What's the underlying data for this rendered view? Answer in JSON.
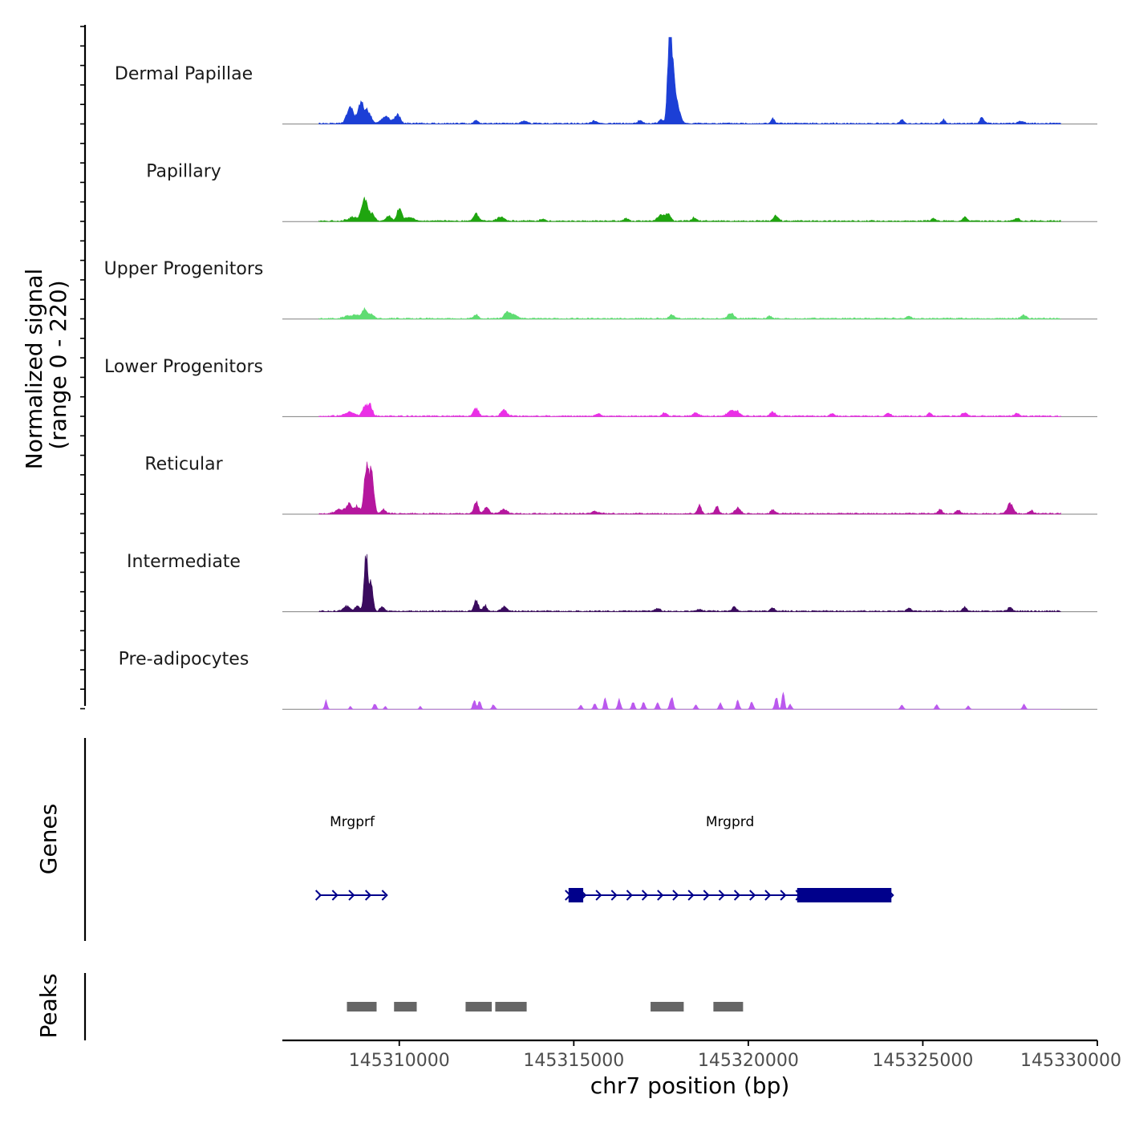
{
  "chart_data": {
    "type": "area",
    "title": "",
    "xlabel": "chr7 position (bp)",
    "ylabel": "Normalized signal",
    "ylabel_range": "(range 0 - 220)",
    "ylim": [
      0,
      220
    ],
    "xlim": [
      145306650,
      145330000
    ],
    "x_ticks": [
      145310000,
      145315000,
      145320000,
      145325000,
      145330000
    ],
    "x_tick_labels": [
      "145310000",
      "145315000",
      "145320000",
      "145325000",
      "145330000"
    ],
    "colors": {
      "Dermal Papillae": "#1c3fd6",
      "Papillary": "#1fa50f",
      "Upper Progenitors": "#5fdc72",
      "Lower Progenitors": "#ea2fe6",
      "Reticular": "#b5179e",
      "Intermediate": "#3a0b5e",
      "Pre-adipocytes": "#bb59ee"
    },
    "series": [
      {
        "name": "Dermal Papillae",
        "peaks": [
          [
            145308600,
            40,
            100
          ],
          [
            145308900,
            55,
            70
          ],
          [
            145309100,
            32,
            90
          ],
          [
            145309600,
            18,
            120
          ],
          [
            145309950,
            22,
            80
          ],
          [
            145312200,
            8,
            60
          ],
          [
            145313600,
            6,
            80
          ],
          [
            145315600,
            6,
            80
          ],
          [
            145316900,
            8,
            60
          ],
          [
            145317500,
            10,
            60
          ],
          [
            145317750,
            210,
            55
          ],
          [
            145317850,
            120,
            90
          ],
          [
            145318050,
            15,
            60
          ],
          [
            145320700,
            12,
            50
          ],
          [
            145324400,
            9,
            50
          ],
          [
            145325600,
            9,
            50
          ],
          [
            145326700,
            14,
            60
          ],
          [
            145327800,
            6,
            80
          ]
        ]
      },
      {
        "name": "Papillary",
        "peaks": [
          [
            145308700,
            10,
            150
          ],
          [
            145309000,
            60,
            70
          ],
          [
            145309200,
            20,
            80
          ],
          [
            145309700,
            12,
            80
          ],
          [
            145310000,
            30,
            70
          ],
          [
            145310300,
            10,
            100
          ],
          [
            145312200,
            18,
            70
          ],
          [
            145312900,
            10,
            100
          ],
          [
            145314100,
            6,
            60
          ],
          [
            145316500,
            6,
            60
          ],
          [
            145317500,
            14,
            100
          ],
          [
            145317700,
            18,
            70
          ],
          [
            145318450,
            8,
            60
          ],
          [
            145320800,
            14,
            70
          ],
          [
            145325300,
            6,
            60
          ],
          [
            145326200,
            10,
            70
          ],
          [
            145327700,
            8,
            60
          ]
        ]
      },
      {
        "name": "Upper Progenitors",
        "peaks": [
          [
            145308500,
            6,
            100
          ],
          [
            145308750,
            10,
            100
          ],
          [
            145309000,
            24,
            70
          ],
          [
            145309200,
            12,
            70
          ],
          [
            145312200,
            9,
            60
          ],
          [
            145313100,
            16,
            90
          ],
          [
            145313300,
            8,
            90
          ],
          [
            145317800,
            9,
            70
          ],
          [
            145319500,
            14,
            80
          ],
          [
            145320600,
            6,
            60
          ],
          [
            145324600,
            6,
            60
          ],
          [
            145327900,
            9,
            70
          ]
        ]
      },
      {
        "name": "Lower Progenitors",
        "peaks": [
          [
            145308600,
            10,
            140
          ],
          [
            145309000,
            20,
            60
          ],
          [
            145309150,
            30,
            70
          ],
          [
            145312200,
            20,
            70
          ],
          [
            145313000,
            16,
            80
          ],
          [
            145315700,
            6,
            60
          ],
          [
            145317600,
            8,
            60
          ],
          [
            145318500,
            8,
            80
          ],
          [
            145319500,
            15,
            90
          ],
          [
            145319700,
            10,
            70
          ],
          [
            145320700,
            10,
            70
          ],
          [
            145322400,
            6,
            60
          ],
          [
            145324000,
            8,
            60
          ],
          [
            145325200,
            8,
            60
          ],
          [
            145326200,
            9,
            70
          ],
          [
            145327700,
            8,
            60
          ]
        ]
      },
      {
        "name": "Reticular",
        "peaks": [
          [
            145308250,
            10,
            100
          ],
          [
            145308550,
            25,
            90
          ],
          [
            145308800,
            18,
            70
          ],
          [
            145309050,
            105,
            60
          ],
          [
            145309200,
            100,
            70
          ],
          [
            145309550,
            10,
            70
          ],
          [
            145312200,
            30,
            60
          ],
          [
            145312500,
            18,
            70
          ],
          [
            145313000,
            10,
            90
          ],
          [
            145315600,
            6,
            100
          ],
          [
            145318600,
            22,
            50
          ],
          [
            145319100,
            18,
            50
          ],
          [
            145319700,
            14,
            80
          ],
          [
            145320700,
            9,
            60
          ],
          [
            145325500,
            10,
            60
          ],
          [
            145326000,
            9,
            60
          ],
          [
            145327500,
            25,
            80
          ],
          [
            145328100,
            8,
            60
          ]
        ]
      },
      {
        "name": "Intermediate",
        "peaks": [
          [
            145308500,
            12,
            100
          ],
          [
            145308800,
            14,
            60
          ],
          [
            145309050,
            140,
            55
          ],
          [
            145309200,
            70,
            50
          ],
          [
            145309500,
            10,
            60
          ],
          [
            145312200,
            28,
            60
          ],
          [
            145312450,
            14,
            60
          ],
          [
            145313000,
            12,
            70
          ],
          [
            145317400,
            8,
            60
          ],
          [
            145318600,
            6,
            60
          ],
          [
            145319600,
            12,
            60
          ],
          [
            145320700,
            8,
            60
          ],
          [
            145324600,
            8,
            60
          ],
          [
            145326200,
            10,
            60
          ],
          [
            145327500,
            10,
            60
          ]
        ]
      },
      {
        "name": "Pre-adipocytes",
        "peaks": [
          [
            145307900,
            22,
            35
          ],
          [
            145308600,
            8,
            30
          ],
          [
            145309300,
            14,
            40
          ],
          [
            145309600,
            8,
            30
          ],
          [
            145310600,
            8,
            30
          ],
          [
            145312150,
            24,
            40
          ],
          [
            145312300,
            20,
            40
          ],
          [
            145312700,
            12,
            40
          ],
          [
            145315200,
            10,
            40
          ],
          [
            145315600,
            14,
            40
          ],
          [
            145315900,
            30,
            35
          ],
          [
            145316300,
            24,
            40
          ],
          [
            145316700,
            18,
            40
          ],
          [
            145317000,
            20,
            40
          ],
          [
            145317400,
            16,
            40
          ],
          [
            145317800,
            32,
            45
          ],
          [
            145318500,
            10,
            40
          ],
          [
            145319200,
            16,
            40
          ],
          [
            145319700,
            22,
            40
          ],
          [
            145320100,
            20,
            40
          ],
          [
            145320800,
            30,
            40
          ],
          [
            145321000,
            44,
            35
          ],
          [
            145321200,
            12,
            40
          ],
          [
            145324400,
            12,
            40
          ],
          [
            145325400,
            12,
            40
          ],
          [
            145326300,
            8,
            40
          ],
          [
            145327900,
            12,
            40
          ]
        ]
      }
    ],
    "genes": [
      {
        "name": "Mrgprf",
        "start": 145307700,
        "end": 145309600,
        "strand": "+",
        "exons": []
      },
      {
        "name": "Mrgprd",
        "start": 145314850,
        "end": 145324100,
        "strand": "+",
        "exons": [
          [
            145314850,
            145315270
          ],
          [
            145321400,
            145324100
          ]
        ]
      }
    ],
    "genes_label": "Genes",
    "peaks_label": "Peaks",
    "peak_regions": [
      [
        145308500,
        145309350
      ],
      [
        145309850,
        145310500
      ],
      [
        145311900,
        145312650
      ],
      [
        145312750,
        145313650
      ],
      [
        145317200,
        145318150
      ],
      [
        145319000,
        145319850
      ]
    ]
  }
}
